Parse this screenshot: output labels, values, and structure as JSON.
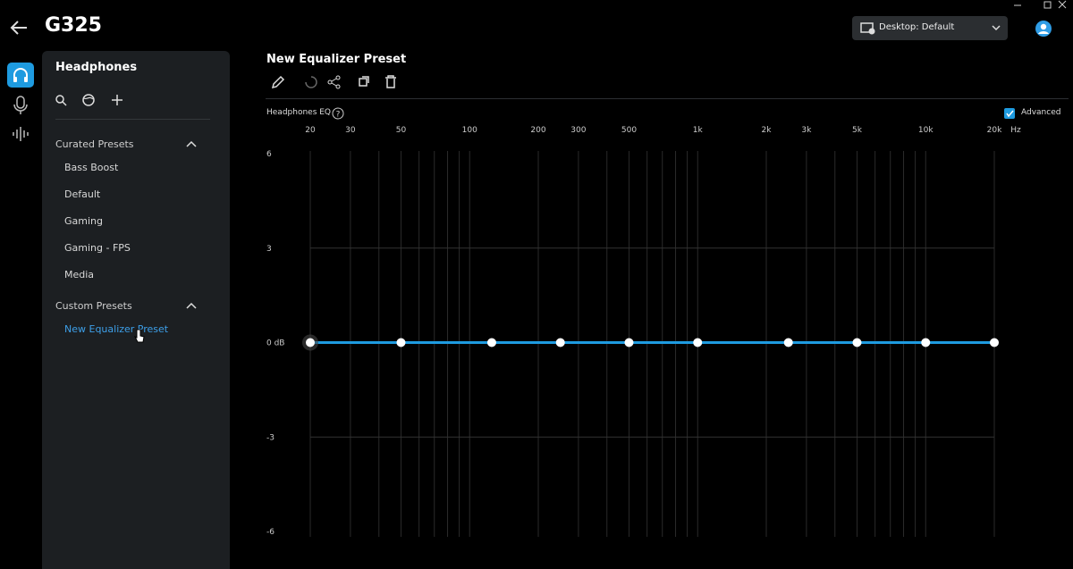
{
  "header": {
    "title": "G325"
  },
  "device_selector": {
    "label": "Desktop: Default"
  },
  "sidebar": {
    "title": "Headphones",
    "sections": [
      {
        "title": "Curated Presets",
        "items": [
          "Bass Boost",
          "Default",
          "Gaming",
          "Gaming - FPS",
          "Media"
        ]
      },
      {
        "title": "Custom Presets",
        "items": [
          "New Equalizer Preset"
        ]
      }
    ]
  },
  "preset": {
    "title": "New Equalizer Preset"
  },
  "eq_options": {
    "label": "Advanced",
    "checked": true
  },
  "chart_data": {
    "type": "line",
    "title": "Headphones EQ",
    "xlabel": "Hz",
    "xscale": "log",
    "x": [
      20,
      50,
      125,
      250,
      500,
      1000,
      2500,
      5000,
      10000,
      20000
    ],
    "values": [
      0,
      0,
      0,
      0,
      0,
      0,
      0,
      0,
      0,
      0
    ],
    "color": "#1e9be0",
    "xlim": [
      20,
      20000
    ],
    "xticks": [
      20,
      30,
      50,
      100,
      200,
      300,
      500,
      {
        "value": 1000,
        "label": "1k"
      },
      {
        "value": 2000,
        "label": "2k"
      },
      {
        "value": 3000,
        "label": "3k"
      },
      {
        "value": 5000,
        "label": "5k"
      },
      {
        "value": 10000,
        "label": "10k"
      },
      {
        "value": 20000,
        "label": "20k"
      }
    ],
    "xgrid": [
      20,
      30,
      40,
      50,
      60,
      70,
      80,
      90,
      100,
      200,
      300,
      400,
      500,
      600,
      700,
      800,
      900,
      1000,
      2000,
      3000,
      4000,
      5000,
      6000,
      7000,
      8000,
      9000,
      10000,
      20000
    ],
    "ylim": [
      -6,
      6
    ],
    "yticks": [
      6,
      3,
      {
        "value": 0,
        "label": "0 dB"
      },
      -3,
      -6
    ],
    "grid": true
  }
}
